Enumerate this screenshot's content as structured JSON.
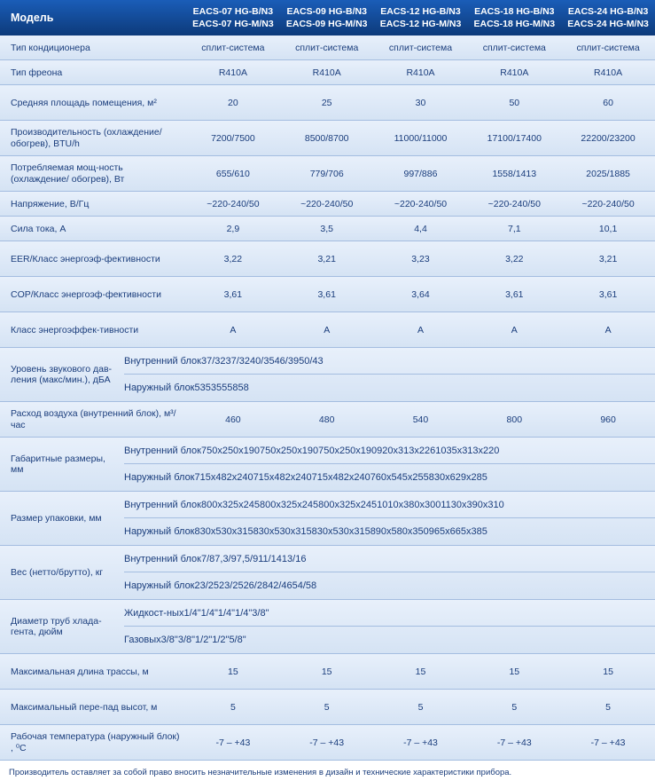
{
  "colors": {
    "header_gradient_top": "#1a5db8",
    "header_gradient_bottom": "#0d3a7a",
    "row_gradient_top": "#e8f0fb",
    "row_gradient_bottom": "#d5e3f4",
    "border": "#a4bde0",
    "text": "#1a3d7c"
  },
  "header": {
    "label": "Модель",
    "cols": [
      {
        "l1": "EACS-07 HG-B/N3",
        "l2": "EACS-07 HG-M/N3"
      },
      {
        "l1": "EACS-09 HG-B/N3",
        "l2": "EACS-09 HG-M/N3"
      },
      {
        "l1": "EACS-12 HG-B/N3",
        "l2": "EACS-12 HG-M/N3"
      },
      {
        "l1": "EACS-18 HG-B/N3",
        "l2": "EACS-18 HG-M/N3"
      },
      {
        "l1": "EACS-24 HG-B/N3",
        "l2": "EACS-24 HG-M/N3"
      }
    ]
  },
  "rows_top": [
    {
      "label": "Тип кондиционера",
      "v": [
        "сплит-система",
        "сплит-система",
        "сплит-система",
        "сплит-система",
        "сплит-система"
      ]
    },
    {
      "label": "Тип фреона",
      "v": [
        "R410A",
        "R410A",
        "R410A",
        "R410A",
        "R410A"
      ]
    },
    {
      "label": "Средняя площадь помещения, м²",
      "v": [
        "20",
        "25",
        "30",
        "50",
        "60"
      ],
      "tall": true
    },
    {
      "label": "Производительность (охлаждение/обогрев), BTU/h",
      "v": [
        "7200/7500",
        "8500/8700",
        "11000/11000",
        "17100/17400",
        "22200/23200"
      ],
      "tall": true
    },
    {
      "label": "Потребляемая мощ-ность (охлаждение/ обогрев), Вт",
      "v": [
        "655/610",
        "779/706",
        "997/886",
        "1558/1413",
        "2025/1885"
      ],
      "tall": true
    },
    {
      "label": "Напряжение, В/Гц",
      "v": [
        "~220-240/50",
        "~220-240/50",
        "~220-240/50",
        "~220-240/50",
        "~220-240/50"
      ]
    },
    {
      "label": "Сила тока, А",
      "v": [
        "2,9",
        "3,5",
        "4,4",
        "7,1",
        "10,1"
      ]
    },
    {
      "label": "EER/Класс энергоэф-фективности",
      "v": [
        "3,22",
        "3,21",
        "3,23",
        "3,22",
        "3,21"
      ],
      "tall": true
    },
    {
      "label": "COP/Класс энергоэф-фективности",
      "v": [
        "3,61",
        "3,61",
        "3,64",
        "3,61",
        "3,61"
      ],
      "tall": true
    },
    {
      "label": "Класс энергоэффек-тивности",
      "v": [
        "A",
        "A",
        "A",
        "A",
        "A"
      ],
      "tall": true
    }
  ],
  "groups": [
    {
      "label": "Уровень звукового дав-ления (макс/мин.), дБА",
      "subs": [
        {
          "label": "Внутренний блок",
          "v": [
            "37/32",
            "37/32",
            "40/35",
            "46/39",
            "50/43"
          ]
        },
        {
          "label": "Наружный блок",
          "v": [
            "53",
            "53",
            "55",
            "58",
            "58"
          ]
        }
      ]
    }
  ],
  "rows_mid": [
    {
      "label": "Расход воздуха (внутренний блок), м³/ час",
      "v": [
        "460",
        "480",
        "540",
        "800",
        "960"
      ],
      "tall": true
    }
  ],
  "groups2": [
    {
      "label": "Габаритные размеры, мм",
      "subs": [
        {
          "label": "Внутренний блок",
          "v": [
            "750x250x190",
            "750x250x190",
            "750x250x190",
            "920x313x226",
            "1035x313x220"
          ]
        },
        {
          "label": "Наружный блок",
          "v": [
            "715x482x240",
            "715x482x240",
            "715x482x240",
            "760x545x255",
            "830x629x285"
          ]
        }
      ]
    },
    {
      "label": "Размер упаковки, мм",
      "subs": [
        {
          "label": "Внутренний блок",
          "v": [
            "800x325x245",
            "800x325x245",
            "800x325x245",
            "1010x380x300",
            "1130x390x310"
          ]
        },
        {
          "label": "Наружный блок",
          "v": [
            "830x530x315",
            "830x530x315",
            "830x530x315",
            "890x580x350",
            "965x665x385"
          ]
        }
      ]
    },
    {
      "label": "Вес (нетто/брутто), кг",
      "subs": [
        {
          "label": "Внутренний блок",
          "v": [
            "7/8",
            "7,3/9",
            "7,5/9",
            "11/14",
            "13/16"
          ]
        },
        {
          "label": "Наружный блок",
          "v": [
            "23/25",
            "23/25",
            "26/28",
            "42/46",
            "54/58"
          ]
        }
      ]
    },
    {
      "label": "Диаметр труб хлада-гента, дюйм",
      "subs": [
        {
          "label": "Жидкост-ных",
          "v": [
            "1/4\"",
            "1/4\"",
            "1/4\"",
            "1/4\"",
            "3/8\""
          ]
        },
        {
          "label": "Газовых",
          "v": [
            "3/8\"",
            "3/8\"",
            "1/2\"",
            "1/2\"",
            "5/8\""
          ]
        }
      ]
    }
  ],
  "rows_bottom": [
    {
      "label": "Максимальная длина трассы, м",
      "v": [
        "15",
        "15",
        "15",
        "15",
        "15"
      ],
      "tall": true
    },
    {
      "label": "Максимальный пере-пад высот, м",
      "v": [
        "5",
        "5",
        "5",
        "5",
        "5"
      ],
      "tall": true
    },
    {
      "label": "Рабочая температура (наружный блок) , ⁰С",
      "v": [
        "-7 – +43",
        "-7 – +43",
        "-7 – +43",
        "-7 – +43",
        "-7 – +43"
      ],
      "tall": true
    }
  ],
  "footnote": "Производитель оставляет за собой право вносить незначительные изменения в дизайн и технические характеристики прибора."
}
